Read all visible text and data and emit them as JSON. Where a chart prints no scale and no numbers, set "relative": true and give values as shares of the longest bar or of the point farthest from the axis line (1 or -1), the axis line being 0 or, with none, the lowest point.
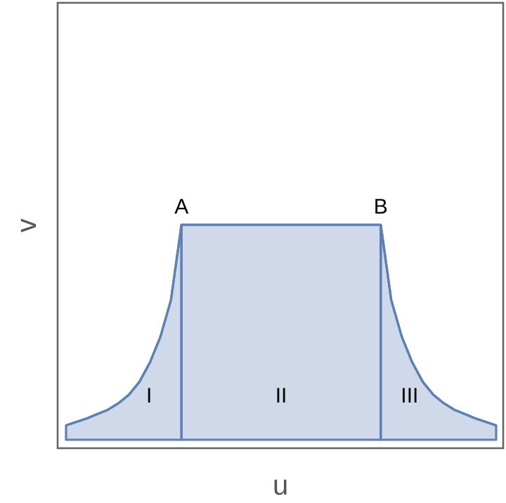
{
  "chart_data": {
    "type": "area",
    "relative": true,
    "xlabel": "u",
    "ylabel": "v",
    "tick_labels": false,
    "categories": [
      null,
      null,
      null,
      null,
      null,
      null,
      null,
      null,
      null,
      null,
      null,
      null,
      null,
      null,
      null,
      null,
      null,
      null,
      null,
      null,
      null,
      null,
      null,
      null,
      null,
      null,
      null,
      null,
      null,
      null,
      null,
      null,
      null,
      null,
      null,
      null,
      null,
      null,
      null,
      null,
      null,
      null
    ],
    "series": [
      {
        "name": "I",
        "color": "#5f80b5",
        "values": [
          0.067,
          0.083,
          0.1,
          0.12,
          0.14,
          0.17,
          0.21,
          0.27,
          0.36,
          0.48,
          0.65,
          1,
          null,
          null,
          null,
          null,
          null,
          null,
          null,
          null,
          null,
          null,
          null,
          null,
          null,
          null,
          null,
          null,
          null,
          null,
          null,
          null,
          null,
          null,
          null,
          null,
          null,
          null,
          null,
          null,
          null,
          null
        ]
      },
      {
        "name": "II",
        "color": "#5f80b5",
        "values": [
          null,
          null,
          null,
          null,
          null,
          null,
          null,
          null,
          null,
          null,
          null,
          1,
          1,
          1,
          1,
          1,
          1,
          1,
          1,
          1,
          1,
          1,
          1,
          1,
          1,
          1,
          1,
          1,
          1,
          1,
          1,
          null,
          null,
          null,
          null,
          null,
          null,
          null,
          null,
          null,
          null,
          null
        ]
      },
      {
        "name": "III",
        "color": "#5f80b5",
        "values": [
          null,
          null,
          null,
          null,
          null,
          null,
          null,
          null,
          null,
          null,
          null,
          null,
          null,
          null,
          null,
          null,
          null,
          null,
          null,
          null,
          null,
          null,
          null,
          null,
          null,
          null,
          null,
          null,
          null,
          null,
          1,
          0.65,
          0.48,
          0.36,
          0.27,
          0.21,
          0.17,
          0.14,
          0.12,
          0.1,
          0.083,
          0.067
        ]
      }
    ],
    "annotations": [
      "A",
      "B"
    ]
  }
}
